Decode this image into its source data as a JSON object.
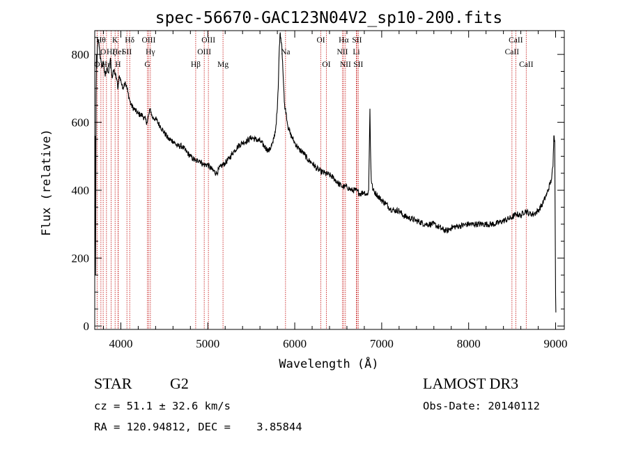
{
  "chart_data": {
    "type": "line",
    "title": "spec-56670-GAC123N04V2_sp10-200.fits",
    "xlabel": "Wavelength (Å)",
    "ylabel": "Flux (relative)",
    "xlim": [
      3700,
      9100
    ],
    "ylim": [
      -10,
      870
    ],
    "xticks": [
      4000,
      5000,
      6000,
      7000,
      8000,
      9000
    ],
    "xtick_labels": [
      "4000",
      "5000",
      "6000",
      "7000",
      "8000",
      "9000"
    ],
    "yticks": [
      0,
      200,
      400,
      600,
      800
    ],
    "ytick_labels": [
      "0",
      "200",
      "400",
      "600",
      "800"
    ],
    "series": [
      {
        "name": "spectrum",
        "x": [
          3700,
          3705,
          3710,
          3715,
          3720,
          3725,
          3730,
          3740,
          3760,
          3780,
          3800,
          3820,
          3840,
          3860,
          3880,
          3900,
          3920,
          3935,
          3950,
          3968,
          3980,
          4000,
          4020,
          4050,
          4080,
          4102,
          4120,
          4150,
          4200,
          4250,
          4300,
          4340,
          4360,
          4400,
          4450,
          4500,
          4550,
          4600,
          4650,
          4700,
          4750,
          4800,
          4861,
          4900,
          4950,
          5000,
          5050,
          5100,
          5150,
          5200,
          5250,
          5300,
          5350,
          5400,
          5450,
          5500,
          5550,
          5600,
          5650,
          5700,
          5750,
          5780,
          5800,
          5810,
          5820,
          5830,
          5840,
          5850,
          5860,
          5870,
          5880,
          5890,
          5900,
          5920,
          5950,
          6000,
          6050,
          6100,
          6150,
          6200,
          6250,
          6300,
          6350,
          6400,
          6450,
          6500,
          6550,
          6600,
          6650,
          6700,
          6750,
          6800,
          6830,
          6850,
          6860,
          6865,
          6870,
          6880,
          6900,
          6950,
          7000,
          7050,
          7100,
          7150,
          7200,
          7250,
          7300,
          7400,
          7500,
          7600,
          7700,
          7750,
          7800,
          7900,
          8000,
          8100,
          8200,
          8300,
          8400,
          8500,
          8550,
          8600,
          8650,
          8700,
          8750,
          8800,
          8850,
          8900,
          8950,
          8970,
          8980,
          8990,
          9000,
          9003
        ],
        "y": [
          350,
          560,
          150,
          680,
          800,
          760,
          820,
          845,
          800,
          760,
          780,
          735,
          760,
          745,
          790,
          730,
          755,
          740,
          730,
          700,
          735,
          725,
          700,
          720,
          690,
          665,
          650,
          640,
          625,
          620,
          600,
          640,
          615,
          610,
          590,
          570,
          550,
          545,
          530,
          530,
          515,
          500,
          485,
          490,
          475,
          475,
          460,
          450,
          470,
          480,
          495,
          515,
          530,
          540,
          545,
          555,
          550,
          545,
          530,
          515,
          540,
          580,
          640,
          700,
          800,
          860,
          850,
          830,
          780,
          720,
          660,
          640,
          630,
          590,
          565,
          540,
          520,
          510,
          490,
          480,
          465,
          455,
          450,
          445,
          435,
          420,
          410,
          410,
          400,
          400,
          390,
          395,
          385,
          400,
          560,
          640,
          530,
          430,
          400,
          385,
          370,
          360,
          345,
          340,
          340,
          325,
          320,
          310,
          300,
          300,
          285,
          280,
          290,
          295,
          300,
          300,
          300,
          300,
          310,
          320,
          330,
          325,
          340,
          330,
          330,
          340,
          360,
          390,
          430,
          470,
          560,
          545,
          90,
          40
        ],
        "noise_amplitude": 9
      }
    ],
    "emission_lines": [
      {
        "name": "O",
        "wavelength": 3727,
        "row": 2
      },
      {
        "name": "Hθ",
        "wavelength": 3771,
        "row": 0
      },
      {
        "name": "O",
        "wavelength": 3797,
        "row": 1
      },
      {
        "name": "Hη",
        "wavelength": 3835,
        "row": 2
      },
      {
        "name": "Hζ",
        "wavelength": 3889,
        "row": 1
      },
      {
        "name": "K",
        "wavelength": 3934,
        "row": 0
      },
      {
        "name": "H",
        "wavelength": 3968,
        "row": 2
      },
      {
        "name": "HeI",
        "wavelength": 3970,
        "row": 1
      },
      {
        "name": "SII",
        "wavelength": 4070,
        "row": 1
      },
      {
        "name": "Hδ",
        "wavelength": 4102,
        "row": 0
      },
      {
        "name": "OIII",
        "wavelength": 4320,
        "row": 0
      },
      {
        "name": "Hγ",
        "wavelength": 4340,
        "row": 1
      },
      {
        "name": "G",
        "wavelength": 4305,
        "row": 2
      },
      {
        "name": "Hβ",
        "wavelength": 4861,
        "row": 2
      },
      {
        "name": "OIII",
        "wavelength": 4959,
        "row": 1
      },
      {
        "name": "OIII",
        "wavelength": 5007,
        "row": 0
      },
      {
        "name": "Mg",
        "wavelength": 5175,
        "row": 2
      },
      {
        "name": "Na",
        "wavelength": 5894,
        "row": 1
      },
      {
        "name": "OI",
        "wavelength": 6300,
        "row": 0
      },
      {
        "name": "OI",
        "wavelength": 6364,
        "row": 2
      },
      {
        "name": "NII",
        "wavelength": 6548,
        "row": 1
      },
      {
        "name": "Hα",
        "wavelength": 6563,
        "row": 0
      },
      {
        "name": "NII",
        "wavelength": 6583,
        "row": 2
      },
      {
        "name": "Li",
        "wavelength": 6708,
        "row": 1
      },
      {
        "name": "SII",
        "wavelength": 6716,
        "row": 0
      },
      {
        "name": "SII",
        "wavelength": 6731,
        "row": 2
      },
      {
        "name": "CaII",
        "wavelength": 8498,
        "row": 1
      },
      {
        "name": "CaII",
        "wavelength": 8542,
        "row": 0
      },
      {
        "name": "CaII",
        "wavelength": 8662,
        "row": 2
      }
    ],
    "colors": {
      "spectrum": "#000000",
      "line_marker": "#c00000",
      "background": "#ffffff"
    }
  },
  "info": {
    "class": "STAR",
    "subclass": "G2",
    "survey": "LAMOST DR3",
    "cz": "cz = 51.1 ± 32.6 km/s",
    "obs_date": "Obs-Date: 20140112",
    "coords": "RA = 120.94812, DEC =    3.85844"
  }
}
